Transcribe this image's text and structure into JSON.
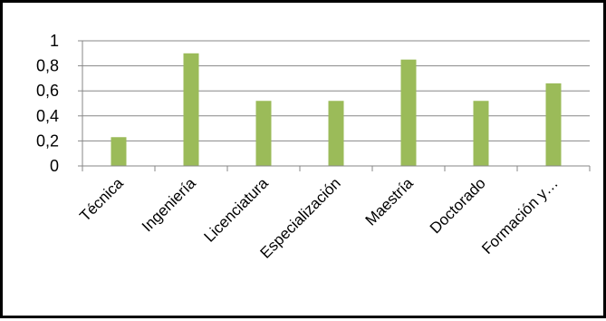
{
  "chart_data": {
    "type": "bar",
    "categories": [
      "Técnica",
      "Ingeniería",
      "Licenciatura",
      "Especialización",
      "Maestría",
      "Doctorado",
      "Formación y…"
    ],
    "values": [
      0.23,
      0.9,
      0.52,
      0.52,
      0.85,
      0.52,
      0.66
    ],
    "ylim": [
      0,
      1
    ],
    "yticks": [
      "0",
      "0,2",
      "0,4",
      "0,6",
      "0,8",
      "1"
    ],
    "ytick_values": [
      0,
      0.2,
      0.4,
      0.6,
      0.8,
      1
    ],
    "grid": true,
    "legend": "none",
    "bar_color": "#9BBB59",
    "title": "",
    "xlabel": "",
    "ylabel": ""
  }
}
